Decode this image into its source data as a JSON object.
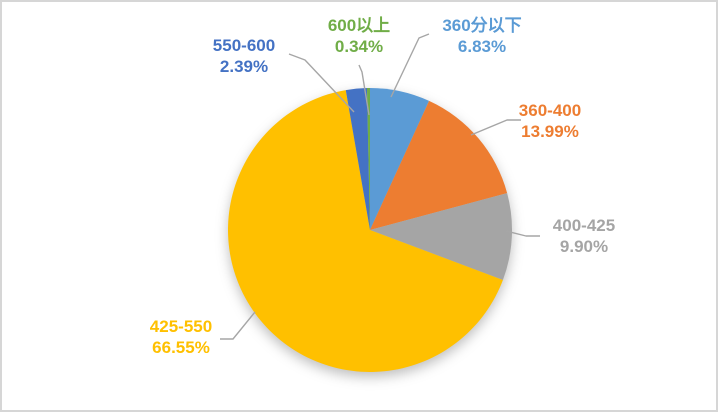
{
  "page": {
    "background_color": "#ffffff",
    "frame_border_color": "#d6d6d6"
  },
  "chart_data": {
    "type": "pie",
    "title": "",
    "legend": "none",
    "direction": "clockwise",
    "start_angle_deg": 0,
    "label_style": "category name + percent, outside with leader lines, text colored as slice",
    "leader_line_color": "#A6A6A6",
    "categories": [
      "360分以下",
      "360-400",
      "400-425",
      "425-550",
      "550-600",
      "600以上"
    ],
    "values": [
      6.83,
      13.99,
      9.9,
      66.55,
      2.39,
      0.34
    ],
    "slices": [
      {
        "label": "360分以下",
        "value_pct": 6.83,
        "percent_text": "6.83%",
        "color": "#5B9BD5"
      },
      {
        "label": "360-400",
        "value_pct": 13.99,
        "percent_text": "13.99%",
        "color": "#ED7D31"
      },
      {
        "label": "400-425",
        "value_pct": 9.9,
        "percent_text": "9.90%",
        "color": "#A5A5A5"
      },
      {
        "label": "425-550",
        "value_pct": 66.55,
        "percent_text": "66.55%",
        "color": "#FFC000"
      },
      {
        "label": "550-600",
        "value_pct": 2.39,
        "percent_text": "2.39%",
        "color": "#4472C4"
      },
      {
        "label": "600以上",
        "value_pct": 0.34,
        "percent_text": "0.34%",
        "color": "#70AD47"
      }
    ]
  }
}
